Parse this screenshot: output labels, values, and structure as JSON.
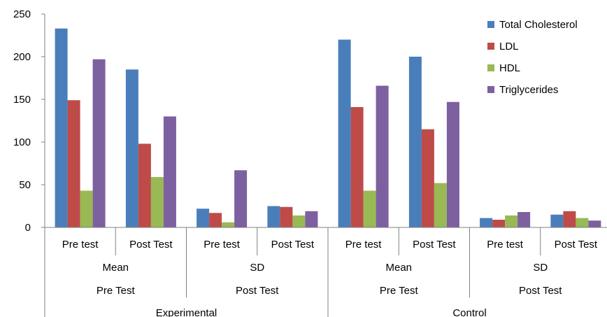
{
  "chart_data": {
    "type": "bar",
    "title": "",
    "xlabel": "",
    "ylabel": "",
    "ylim": [
      0,
      250
    ],
    "yticks": [
      0,
      50,
      100,
      150,
      200,
      250
    ],
    "grid": false,
    "legend": "top-right",
    "categories": [
      "Pre test",
      "Post Test",
      "Pre test",
      "Post Test",
      "Pre test",
      "Post Test",
      "Pre test",
      "Post Test"
    ],
    "groups": {
      "level1": [
        {
          "label": "Mean",
          "span": 2
        },
        {
          "label": "SD",
          "span": 2
        },
        {
          "label": "Mean",
          "span": 2
        },
        {
          "label": "SD",
          "span": 2
        }
      ],
      "level2": [
        {
          "label": "Pre Test",
          "span": 2
        },
        {
          "label": "Post Test",
          "span": 2
        },
        {
          "label": "Pre Test",
          "span": 2
        },
        {
          "label": "Post Test",
          "span": 2
        }
      ],
      "level3": [
        {
          "label": "Experimental",
          "span": 4
        },
        {
          "label": "Control",
          "span": 4
        }
      ]
    },
    "series": [
      {
        "name": "Total Cholesterol",
        "color": "#4a7ebb",
        "values": [
          233,
          185,
          22,
          25,
          220,
          200,
          11,
          15
        ]
      },
      {
        "name": "LDL",
        "color": "#be4b48",
        "values": [
          149,
          98,
          17,
          24,
          141,
          115,
          9,
          19
        ]
      },
      {
        "name": "HDL",
        "color": "#98b954",
        "values": [
          43,
          59,
          6,
          14,
          43,
          52,
          14,
          11
        ]
      },
      {
        "name": "Triglycerides",
        "color": "#7d60a0",
        "values": [
          197,
          130,
          67,
          19,
          166,
          147,
          18,
          8
        ]
      }
    ]
  }
}
